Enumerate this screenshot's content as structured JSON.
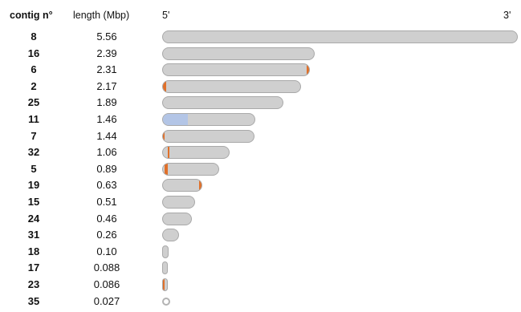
{
  "header": {
    "contig_label": "contig n°",
    "length_label": "length (Mbp)",
    "five_prime": "5'",
    "three_prime": "3'"
  },
  "max_length": 5.56,
  "colors": {
    "bar_fill": "#cfcfcf",
    "bar_border": "#a9a9a9",
    "orange_mark": "#e0702a",
    "blue_region": "#b3c5e6"
  },
  "contigs": [
    {
      "id": "8",
      "length": "5.56",
      "value": 5.56,
      "marks": []
    },
    {
      "id": "16",
      "length": "2.39",
      "value": 2.39,
      "marks": []
    },
    {
      "id": "6",
      "length": "2.31",
      "value": 2.31,
      "marks": [
        {
          "color": "orange",
          "start": 0.985,
          "end": 1.0
        }
      ]
    },
    {
      "id": "2",
      "length": "2.17",
      "value": 2.17,
      "marks": [
        {
          "color": "orange",
          "start": 0.0,
          "end": 0.025
        }
      ]
    },
    {
      "id": "25",
      "length": "1.89",
      "value": 1.89,
      "marks": []
    },
    {
      "id": "11",
      "length": "1.46",
      "value": 1.46,
      "marks": [
        {
          "color": "blue",
          "start": 0.0,
          "end": 0.27
        }
      ]
    },
    {
      "id": "7",
      "length": "1.44",
      "value": 1.44,
      "marks": [
        {
          "color": "orange",
          "start": 0.0,
          "end": 0.02
        }
      ]
    },
    {
      "id": "32",
      "length": "1.06",
      "value": 1.06,
      "marks": [
        {
          "color": "orange",
          "start": 0.07,
          "end": 0.1
        }
      ]
    },
    {
      "id": "5",
      "length": "0.89",
      "value": 0.89,
      "marks": [
        {
          "color": "orange",
          "start": 0.03,
          "end": 0.08
        }
      ]
    },
    {
      "id": "19",
      "length": "0.63",
      "value": 0.63,
      "marks": [
        {
          "color": "orange",
          "start": 0.94,
          "end": 1.0
        }
      ]
    },
    {
      "id": "15",
      "length": "0.51",
      "value": 0.51,
      "marks": []
    },
    {
      "id": "24",
      "length": "0.46",
      "value": 0.46,
      "marks": []
    },
    {
      "id": "31",
      "length": "0.26",
      "value": 0.26,
      "marks": []
    },
    {
      "id": "18",
      "length": "0.10",
      "value": 0.1,
      "marks": []
    },
    {
      "id": "17",
      "length": "0.088",
      "value": 0.088,
      "marks": []
    },
    {
      "id": "23",
      "length": "0.086",
      "value": 0.086,
      "marks": [
        {
          "color": "orange",
          "start": 0.0,
          "end": 0.35
        }
      ]
    },
    {
      "id": "35",
      "length": "0.027",
      "value": 0.027,
      "marks": [],
      "circular": true
    }
  ]
}
